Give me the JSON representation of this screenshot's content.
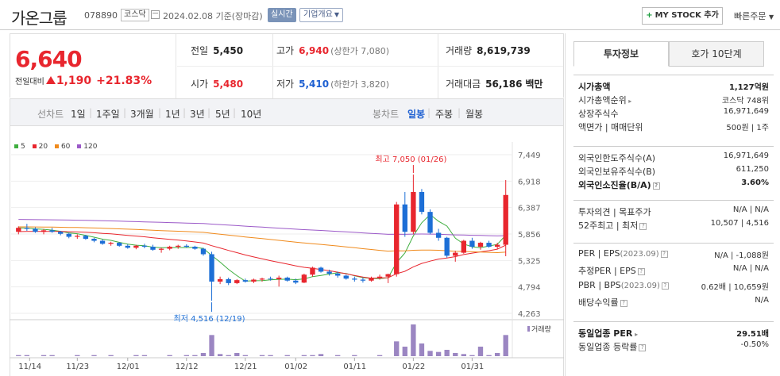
{
  "header": {
    "stock_name": "가온그룹",
    "stock_code": "078890",
    "market": "코스닥",
    "date_text": "2024.02.08 기준(장마감)",
    "realtime_label": "실시간",
    "company_label": "기업개요",
    "mystock_label": "MY STOCK 추가",
    "quickorder_label": "빠른주문"
  },
  "price": {
    "current": "6,640",
    "change_label": "전일대비",
    "change_amount": "1,190",
    "change_percent": "+21.83%",
    "prev_close_label": "전일",
    "prev_close": "5,450",
    "open_label": "시가",
    "open": "5,480",
    "high_label": "고가",
    "high": "6,940",
    "upper_limit": "(상한가 7,080)",
    "low_label": "저가",
    "low": "5,410",
    "lower_limit": "(하한가 3,820)",
    "volume_label": "거래량",
    "volume": "8,619,739",
    "amount_label": "거래대금",
    "amount": "56,186",
    "amount_unit": "백만"
  },
  "periods": {
    "line_label": "선차트",
    "line_items": [
      "1일",
      "1주일",
      "3개월",
      "1년",
      "3년",
      "5년",
      "10년"
    ],
    "candle_label": "봉차트",
    "candle_items": [
      "일봉",
      "주봉",
      "월봉"
    ],
    "active_candle": "일봉"
  },
  "chart_data": {
    "type": "candlestick",
    "ma_legend": [
      {
        "name": "5",
        "color": "#3fae3f"
      },
      {
        "name": "20",
        "color": "#e8262e"
      },
      {
        "name": "60",
        "color": "#f08a1c"
      },
      {
        "name": "120",
        "color": "#9b59c8"
      }
    ],
    "y_ticks": [
      "7,449",
      "6,918",
      "6,387",
      "5,856",
      "5,325",
      "4,794",
      "4,263"
    ],
    "ylim": [
      4263,
      7449
    ],
    "x_ticks": [
      "11/14",
      "11/23",
      "12/01",
      "12/12",
      "12/21",
      "01/02",
      "01/11",
      "01/22",
      "01/31"
    ],
    "high_annotation": "최고 7,050 (01/26)",
    "low_annotation": "최저 4,516 (12/19)",
    "volume_label": "거래량",
    "candles": [
      [
        5900,
        6010,
        5850,
        5980
      ],
      [
        5980,
        6060,
        5920,
        5960
      ],
      [
        5960,
        5990,
        5880,
        5900
      ],
      [
        5900,
        5960,
        5850,
        5930
      ],
      [
        5930,
        5980,
        5880,
        5900
      ],
      [
        5900,
        5920,
        5830,
        5860
      ],
      [
        5860,
        5880,
        5770,
        5800
      ],
      [
        5800,
        5850,
        5760,
        5820
      ],
      [
        5820,
        5840,
        5740,
        5760
      ],
      [
        5760,
        5780,
        5690,
        5720
      ],
      [
        5720,
        5750,
        5640,
        5660
      ],
      [
        5660,
        5700,
        5620,
        5680
      ],
      [
        5680,
        5690,
        5600,
        5620
      ],
      [
        5620,
        5650,
        5560,
        5580
      ],
      [
        5580,
        5640,
        5550,
        5620
      ],
      [
        5620,
        5660,
        5570,
        5600
      ],
      [
        5600,
        5640,
        5520,
        5540
      ],
      [
        5540,
        5580,
        5480,
        5560
      ],
      [
        5560,
        5620,
        5530,
        5600
      ],
      [
        5600,
        5640,
        5560,
        5620
      ],
      [
        5620,
        5650,
        5580,
        5600
      ],
      [
        5600,
        5620,
        5540,
        5560
      ],
      [
        5560,
        5580,
        5420,
        5450
      ],
      [
        5450,
        5500,
        4516,
        4900
      ],
      [
        4900,
        5000,
        4850,
        4950
      ],
      [
        4950,
        4980,
        4830,
        4870
      ],
      [
        4870,
        4950,
        4850,
        4930
      ],
      [
        4930,
        4960,
        4880,
        4900
      ],
      [
        4900,
        4960,
        4870,
        4940
      ],
      [
        4940,
        4980,
        4900,
        4960
      ],
      [
        4960,
        5000,
        4920,
        4950
      ],
      [
        4950,
        5020,
        4800,
        4980
      ],
      [
        4980,
        5000,
        4900,
        4920
      ],
      [
        4920,
        4960,
        4850,
        4880
      ],
      [
        4880,
        5060,
        4870,
        5040
      ],
      [
        5040,
        5200,
        5000,
        5180
      ],
      [
        5180,
        5200,
        5080,
        5100
      ],
      [
        5100,
        5140,
        5020,
        5060
      ],
      [
        5060,
        5100,
        4980,
        5020
      ],
      [
        5020,
        5040,
        4940,
        4960
      ],
      [
        4960,
        5000,
        4900,
        4940
      ],
      [
        4940,
        4980,
        4880,
        4920
      ],
      [
        4920,
        5000,
        4900,
        4980
      ],
      [
        4980,
        5040,
        4940,
        5000
      ],
      [
        5000,
        5060,
        4870,
        5050
      ],
      [
        5050,
        6500,
        5000,
        6450
      ],
      [
        6450,
        6700,
        5800,
        5900
      ],
      [
        5900,
        7050,
        5850,
        6700
      ],
      [
        6700,
        6760,
        6250,
        6300
      ],
      [
        6300,
        6350,
        5850,
        5880
      ],
      [
        5880,
        5960,
        5720,
        5780
      ],
      [
        5780,
        5800,
        5380,
        5420
      ],
      [
        5420,
        5520,
        5300,
        5480
      ],
      [
        5480,
        5740,
        5460,
        5720
      ],
      [
        5720,
        5780,
        5560,
        5600
      ],
      [
        5600,
        5700,
        5540,
        5680
      ],
      [
        5680,
        5720,
        5580,
        5600
      ],
      [
        5600,
        5680,
        5560,
        5640
      ],
      [
        5640,
        6940,
        5410,
        6640
      ]
    ],
    "volumes": [
      1,
      1,
      0,
      1,
      1,
      0,
      0,
      1,
      0,
      1,
      0,
      1,
      0,
      0,
      1,
      1,
      0,
      0,
      1,
      0,
      1,
      1,
      3,
      20,
      2,
      1,
      3,
      1,
      0,
      1,
      1,
      0,
      1,
      0,
      1,
      1,
      2,
      0,
      1,
      0,
      1,
      0,
      0,
      1,
      0,
      14,
      9,
      30,
      12,
      5,
      4,
      6,
      3,
      2,
      1,
      9,
      1,
      3,
      20
    ]
  },
  "right_panel": {
    "tab_active": "투자정보",
    "tab_inactive": "호가 10단계",
    "section1": [
      {
        "k": "시가총액",
        "v": "1,127억원",
        "bold": true
      },
      {
        "k": "시가총액순위",
        "v": "코스닥 748위",
        "arrow": true
      },
      {
        "k": "상장주식수",
        "v": "16,971,649"
      },
      {
        "k": "액면가 | 매매단위",
        "v": "500원 | 1주"
      }
    ],
    "section2": [
      {
        "k": "외국인한도주식수(A)",
        "v": "16,971,649"
      },
      {
        "k": "외국인보유주식수(B)",
        "v": "611,250"
      },
      {
        "k": "외국인소진율(B/A)",
        "v": "3.60%",
        "bold": true,
        "icon": true
      }
    ],
    "section3": [
      {
        "k": "투자의견 | 목표주가",
        "v": "N/A | N/A"
      },
      {
        "k": "52주최고 | 최저",
        "v": "10,507 | 4,516",
        "icon": true
      }
    ],
    "section4": [
      {
        "k": "PER | EPS",
        "sub": "(2023.09)",
        "v": "N/A | -1,088원",
        "icon": true
      },
      {
        "k": "추정PER | EPS",
        "v": "N/A | N/A",
        "icon": true
      },
      {
        "k": "PBR | BPS",
        "sub": "(2023.09)",
        "v": "0.62배 | 10,659원",
        "icon": true
      },
      {
        "k": "배당수익률",
        "v": "N/A",
        "icon": true
      }
    ],
    "section5": [
      {
        "k": "동일업종 PER",
        "v": "29.51배",
        "bold": true,
        "arrow": true
      },
      {
        "k": "동일업종 등락률",
        "v": "-0.50%",
        "blue": true,
        "icon": true
      }
    ]
  }
}
